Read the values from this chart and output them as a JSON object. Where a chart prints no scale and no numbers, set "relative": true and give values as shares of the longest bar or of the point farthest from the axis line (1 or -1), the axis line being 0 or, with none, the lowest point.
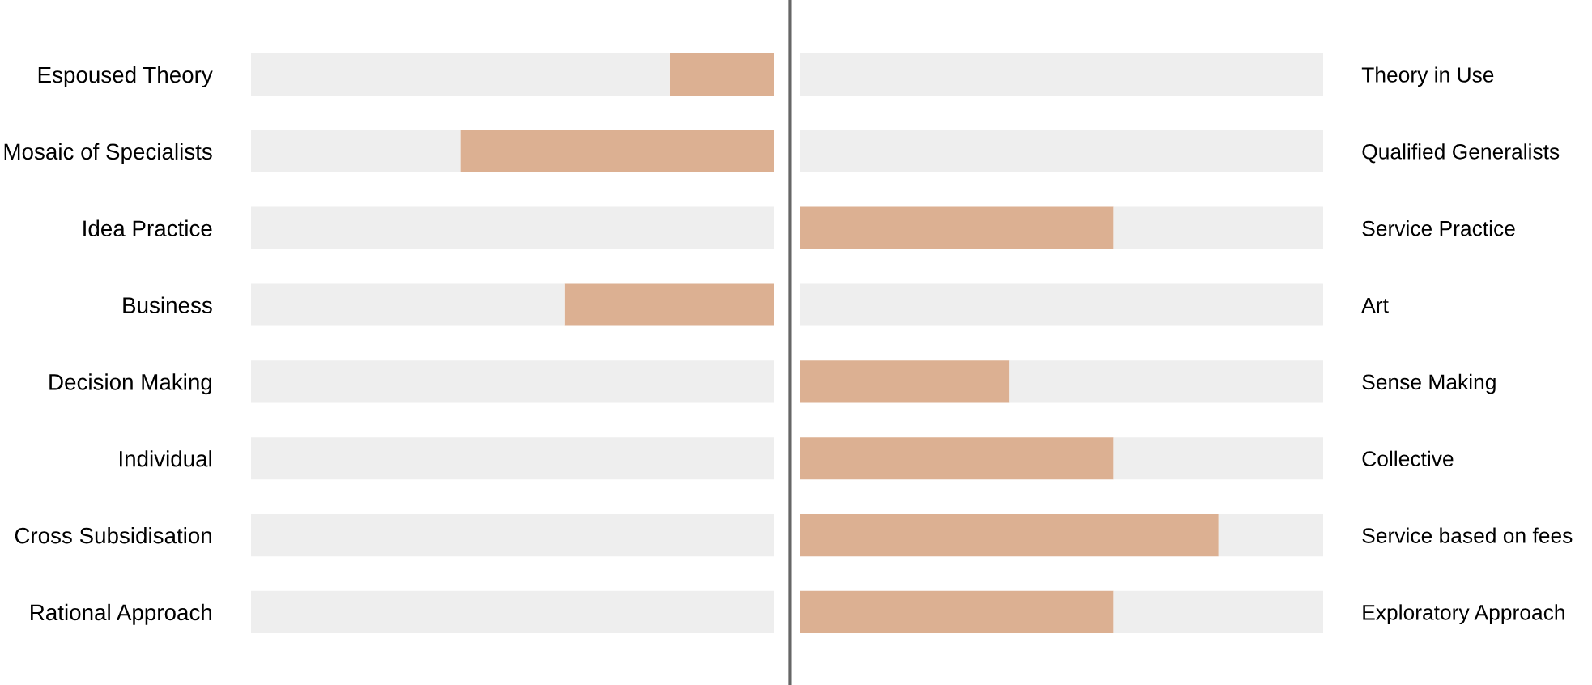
{
  "chart_data": [
    {
      "type": "bar",
      "orientation": "horizontal",
      "relative": true,
      "stacked": true,
      "categories": [
        "Espoused Theory",
        "Mosaic of Specialists",
        "Idea Practice",
        "Business",
        "Decision Making",
        "Individual",
        "Cross Subsidisation",
        "Rational Approach"
      ],
      "series": [
        {
          "color": "#dcb092",
          "values": [
            -0.2,
            -0.6,
            0,
            -0.4,
            0,
            0,
            0,
            0
          ]
        },
        {
          "color": "#eeeeee",
          "values": [
            -0.8,
            -0.4,
            -1,
            -0.6,
            -1,
            -1,
            -1,
            -1
          ]
        }
      ]
    },
    {
      "type": "bar",
      "orientation": "horizontal",
      "relative": true,
      "stacked": true,
      "categories": [
        "Theory in Use",
        "Qualified Generalists",
        "Service Practice",
        "Art",
        "Sense Making",
        "Collective",
        "Service based on fees",
        "Exploratory Approach"
      ],
      "series": [
        {
          "color": "#dcb092",
          "values": [
            0,
            0,
            0.6,
            0,
            0.4,
            0.6,
            0.8,
            0.6
          ]
        },
        {
          "color": "#eeeeee",
          "values": [
            1,
            1,
            0.4,
            1,
            0.6,
            0.4,
            0.2,
            0.4
          ]
        }
      ]
    }
  ]
}
